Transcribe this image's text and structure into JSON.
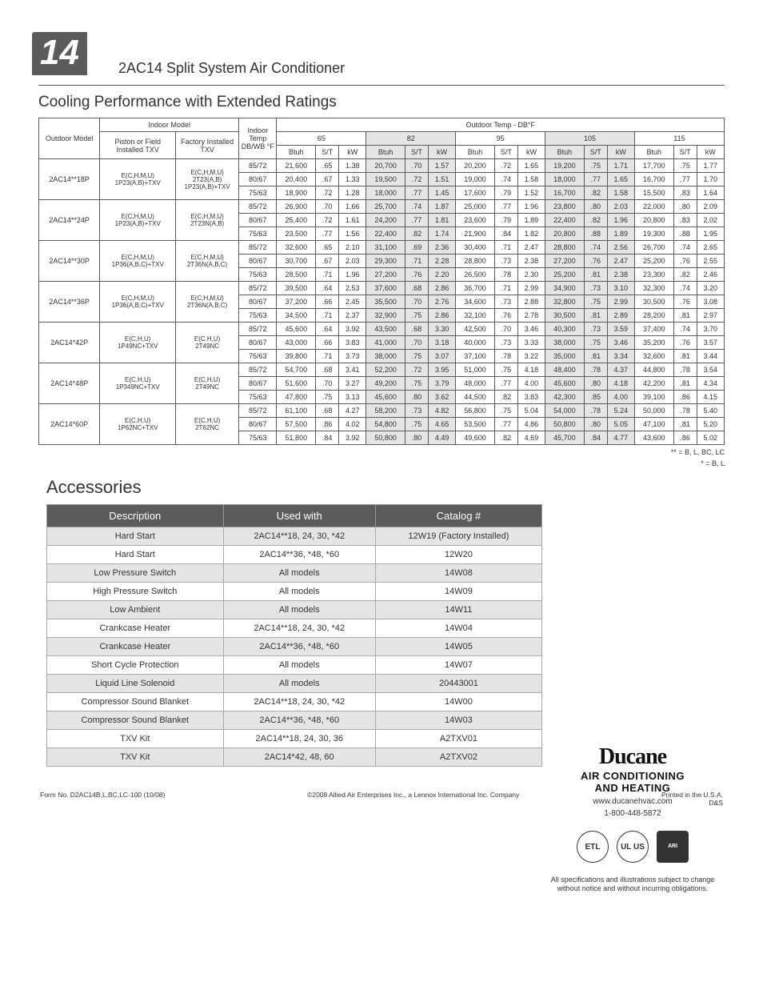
{
  "page_number": "14",
  "model_title": "2AC14   Split System Air Conditioner",
  "cooling_section_title": "Cooling Performance with Extended Ratings",
  "accessories_section_title": "Accessories",
  "cool_table": {
    "header": {
      "outdoor_model": "Outdoor Model",
      "indoor_model": "Indoor Model",
      "piston": "Piston or Field Installed TXV",
      "factory": "Factory Installed TXV",
      "indoor_temp": "Indoor Temp DB/WB °F",
      "outdoor_temp": "Outdoor Temp - DB°F",
      "temps": [
        "65",
        "82",
        "95",
        "105",
        "115"
      ],
      "cols": [
        "Btuh",
        "S/T",
        "kW"
      ]
    },
    "groups": [
      {
        "model": "2AC14**18P",
        "piston": "E(C,H,M,U)\n1P23(A,B)+TXV",
        "factory": "E(C,H,M,U)\n2T23(A,B)\n1P23(A,B)+TXV",
        "rows": [
          {
            "t": "85/72",
            "d": [
              "21,600",
              ".65",
              "1.38",
              "20,700",
              ".70",
              "1.57",
              "20,200",
              ".72",
              "1.65",
              "19,200",
              ".75",
              "1.71",
              "17,700",
              ".75",
              "1.77"
            ]
          },
          {
            "t": "80/67",
            "d": [
              "20,400",
              ".67",
              "1.33",
              "19,500",
              ".72",
              "1.51",
              "19,000",
              ".74",
              "1.58",
              "18,000",
              ".77",
              "1.65",
              "16,700",
              ".77",
              "1.70"
            ]
          },
          {
            "t": "75/63",
            "d": [
              "18,900",
              ".72",
              "1.28",
              "18,000",
              ".77",
              "1.45",
              "17,600",
              ".79",
              "1.52",
              "16,700",
              ".82",
              "1.58",
              "15,500",
              ".83",
              "1.64"
            ]
          }
        ]
      },
      {
        "model": "2AC14**24P",
        "piston": "E(C,H,M,U)\n1P23(A,B)+TXV",
        "factory": "E(C,H,M,U)\n2T23N(A,B)",
        "rows": [
          {
            "t": "85/72",
            "d": [
              "26,900",
              ".70",
              "1.66",
              "25,700",
              ".74",
              "1.87",
              "25,000",
              ".77",
              "1.96",
              "23,800",
              ".80",
              "2.03",
              "22,000",
              ".80",
              "2.09"
            ]
          },
          {
            "t": "80/67",
            "d": [
              "25,400",
              ".72",
              "1.61",
              "24,200",
              ".77",
              "1.81",
              "23,600",
              ".79",
              "1.89",
              "22,400",
              ".82",
              "1.96",
              "20,800",
              ".83",
              "2.02"
            ]
          },
          {
            "t": "75/63",
            "d": [
              "23,500",
              ".77",
              "1.56",
              "22,400",
              ".82",
              "1.74",
              "21,900",
              ".84",
              "1.82",
              "20,800",
              ".88",
              "1.89",
              "19,300",
              ".88",
              "1.95"
            ]
          }
        ]
      },
      {
        "model": "2AC14**30P",
        "piston": "E(C,H,M,U)\n1P36(A,B,C)+TXV",
        "factory": "E(C,H,M,U)\n2T36N(A,B,C)",
        "rows": [
          {
            "t": "85/72",
            "d": [
              "32,600",
              ".65",
              "2.10",
              "31,100",
              ".69",
              "2.36",
              "30,400",
              ".71",
              "2.47",
              "28,800",
              ".74",
              "2.56",
              "26,700",
              ".74",
              "2.65"
            ]
          },
          {
            "t": "80/67",
            "d": [
              "30,700",
              ".67",
              "2.03",
              "29,300",
              ".71",
              "2.28",
              "28,800",
              ".73",
              "2.38",
              "27,200",
              ".76",
              "2.47",
              "25,200",
              ".76",
              "2.55"
            ]
          },
          {
            "t": "75/63",
            "d": [
              "28,500",
              ".71",
              "1.96",
              "27,200",
              ".76",
              "2.20",
              "26,500",
              ".78",
              "2.30",
              "25,200",
              ".81",
              "2.38",
              "23,300",
              ".82",
              "2.46"
            ]
          }
        ]
      },
      {
        "model": "2AC14**36P",
        "piston": "E(C,H,M,U)\n1P36(A,B,C)+TXV",
        "factory": "E(C,H,M,U)\n2T36N(A,B,C)",
        "rows": [
          {
            "t": "85/72",
            "d": [
              "39,500",
              ".64",
              "2.53",
              "37,600",
              ".68",
              "2.86",
              "36,700",
              ".71",
              "2.99",
              "34,900",
              ".73",
              "3.10",
              "32,300",
              ".74",
              "3.20"
            ]
          },
          {
            "t": "80/67",
            "d": [
              "37,200",
              ".66",
              "2.45",
              "35,500",
              ".70",
              "2.76",
              "34,600",
              ".73",
              "2.88",
              "32,800",
              ".75",
              "2.99",
              "30,500",
              ".76",
              "3.08"
            ]
          },
          {
            "t": "75/63",
            "d": [
              "34,500",
              ".71",
              "2.37",
              "32,900",
              ".75",
              "2.86",
              "32,100",
              ".76",
              "2.78",
              "30,500",
              ".81",
              "2.89",
              "28,200",
              ".81",
              "2.97"
            ]
          }
        ]
      },
      {
        "model": "2AC14*42P",
        "piston": "E(C,H,U)\n1P49NC+TXV",
        "factory": "E(C,H,U)\n2T49NC",
        "rows": [
          {
            "t": "85/72",
            "d": [
              "45,600",
              ".64",
              "3.92",
              "43,500",
              ".68",
              "3.30",
              "42,500",
              ".70",
              "3.46",
              "40,300",
              ".73",
              "3.59",
              "37,400",
              ".74",
              "3.70"
            ]
          },
          {
            "t": "80/67",
            "d": [
              "43,000",
              ".66",
              "3.83",
              "41,000",
              ".70",
              "3.18",
              "40,000",
              ".73",
              "3.33",
              "38,000",
              ".75",
              "3.46",
              "35,200",
              ".76",
              "3.57"
            ]
          },
          {
            "t": "75/63",
            "d": [
              "39,800",
              ".71",
              "3.73",
              "38,000",
              ".75",
              "3.07",
              "37,100",
              ".78",
              "3.22",
              "35,000",
              ".81",
              "3.34",
              "32,600",
              ".81",
              "3.44"
            ]
          }
        ]
      },
      {
        "model": "2AC14*48P",
        "piston": "E(C,H,U)\n1P349NC+TXV",
        "factory": "E(C,H,U)\n2T49NC",
        "rows": [
          {
            "t": "85/72",
            "d": [
              "54,700",
              ".68",
              "3.41",
              "52,200",
              ".72",
              "3.95",
              "51,000",
              ".75",
              "4.18",
              "48,400",
              ".78",
              "4.37",
              "44,800",
              ".78",
              "3.54"
            ]
          },
          {
            "t": "80/67",
            "d": [
              "51,600",
              ".70",
              "3.27",
              "49,200",
              ".75",
              "3.79",
              "48,000",
              ".77",
              "4.00",
              "45,600",
              ".80",
              "4.18",
              "42,200",
              ".81",
              "4.34"
            ]
          },
          {
            "t": "75/63",
            "d": [
              "47,800",
              ".75",
              "3.13",
              "45,600",
              ".80",
              "3.62",
              "44,500",
              ".82",
              "3.83",
              "42,300",
              ".85",
              "4.00",
              "39,100",
              ".86",
              "4.15"
            ]
          }
        ]
      },
      {
        "model": "2AC14*60P",
        "piston": "E(C,H,U)\n1P62NC+TXV",
        "factory": "E(C,H,U)\n2T62NC",
        "rows": [
          {
            "t": "85/72",
            "d": [
              "61,100",
              ".68",
              "4.27",
              "58,200",
              ".73",
              "4.82",
              "56,800",
              ".75",
              "5.04",
              "54,000",
              ".78",
              "5.24",
              "50,000",
              ".78",
              "5.40"
            ]
          },
          {
            "t": "80/67",
            "d": [
              "57,500",
              ".86",
              "4.02",
              "54,800",
              ".75",
              "4.65",
              "53,500",
              ".77",
              "4.86",
              "50,800",
              ".80",
              "5.05",
              "47,100",
              ".81",
              "5.20"
            ]
          },
          {
            "t": "75/63",
            "d": [
              "51,800",
              ".84",
              "3.92",
              "50,800",
              ".80",
              "4.49",
              "49,600",
              ".82",
              "4.69",
              "45,700",
              ".84",
              "4.77",
              "43,600",
              ".86",
              "5.02"
            ]
          }
        ]
      }
    ]
  },
  "footnote1": "**  = B, L, BC, LC",
  "footnote2": "*   = B, L",
  "acc_table": {
    "headers": [
      "Description",
      "Used with",
      "Catalog #"
    ],
    "rows": [
      [
        "Hard Start",
        "2AC14**18, 24, 30,   *42",
        "12W19 (Factory Installed)"
      ],
      [
        "Hard Start",
        "2AC14**36,   *48, *60",
        "12W20"
      ],
      [
        "Low Pressure Switch",
        "All models",
        "14W08"
      ],
      [
        "High Pressure Switch",
        "All models",
        "14W09"
      ],
      [
        "Low Ambient",
        "All models",
        "14W11"
      ],
      [
        "Crankcase Heater",
        "2AC14**18, 24, 30,   *42",
        "14W04"
      ],
      [
        "Crankcase Heater",
        "2AC14**36,   *48, *60",
        "14W05"
      ],
      [
        "Short Cycle Protection",
        "All models",
        "14W07"
      ],
      [
        "Liquid Line Solenoid",
        "All models",
        "20443001"
      ],
      [
        "Compressor Sound Blanket",
        "2AC14**18, 24, 30,   *42",
        "14W00"
      ],
      [
        "Compressor Sound Blanket",
        "2AC14**36,   *48, *60",
        "14W03"
      ],
      [
        "TXV Kit",
        "2AC14**18, 24, 30, 36",
        "A2TXV01"
      ],
      [
        "TXV Kit",
        "2AC14*42, 48, 60",
        "A2TXV02"
      ]
    ]
  },
  "logo": {
    "name": "Ducane",
    "sub1": "AIR CONDITIONING",
    "sub2": "AND HEATING",
    "url": "www.ducanehvac.com",
    "phone": "1-800-448-5872"
  },
  "certs": [
    "ETL",
    "UL US",
    "ARI"
  ],
  "disclaimer": "All specifications and illustrations subject to change without notice and without incurring obligations.",
  "footer": {
    "left": "Form No. D2AC14B,L,BC,LC-100 (10/08)",
    "center": "©2008 Allied Air Enterprises Inc., a Lennox International Inc. Company",
    "right1": "Printed in the U.S.A.",
    "right2": "D&S"
  }
}
